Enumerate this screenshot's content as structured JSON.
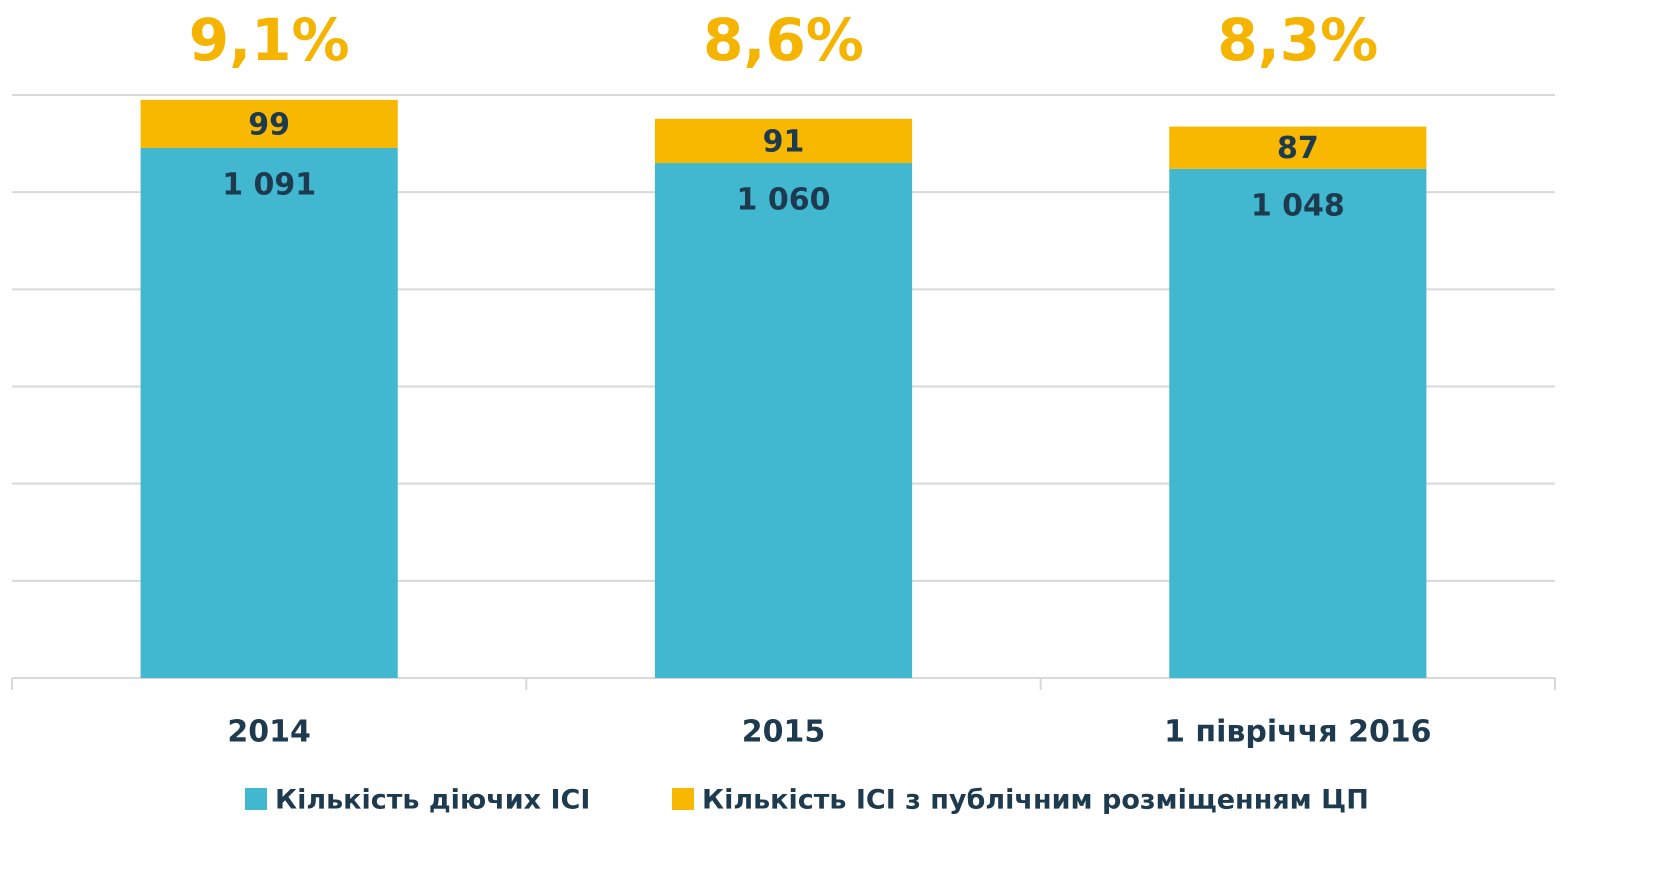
{
  "chart_data": {
    "type": "stacked_bar",
    "categories": [
      "2014",
      "2015",
      "1 півріччя 2016"
    ],
    "series": [
      {
        "name": "Кількість діючих ІСІ",
        "color": "#41b8d0",
        "values": [
          1091,
          1060,
          1048
        ],
        "value_labels": [
          "1 091",
          "1 060",
          "1 048"
        ]
      },
      {
        "name": "Кількість ІСІ з публічним розміщенням ЦП",
        "color": "#f8b800",
        "values": [
          99,
          91,
          87
        ]
      }
    ],
    "share": {
      "color": "#f5b400",
      "values": [
        9.1,
        8.6,
        8.3
      ],
      "value_labels": [
        "9,1%",
        "8,6%",
        "8,3%"
      ]
    },
    "ylim": [
      0,
      1200
    ],
    "yticks": [
      0,
      200,
      400,
      600,
      800,
      1000,
      1200
    ],
    "grid": true,
    "legend": "bottom"
  }
}
